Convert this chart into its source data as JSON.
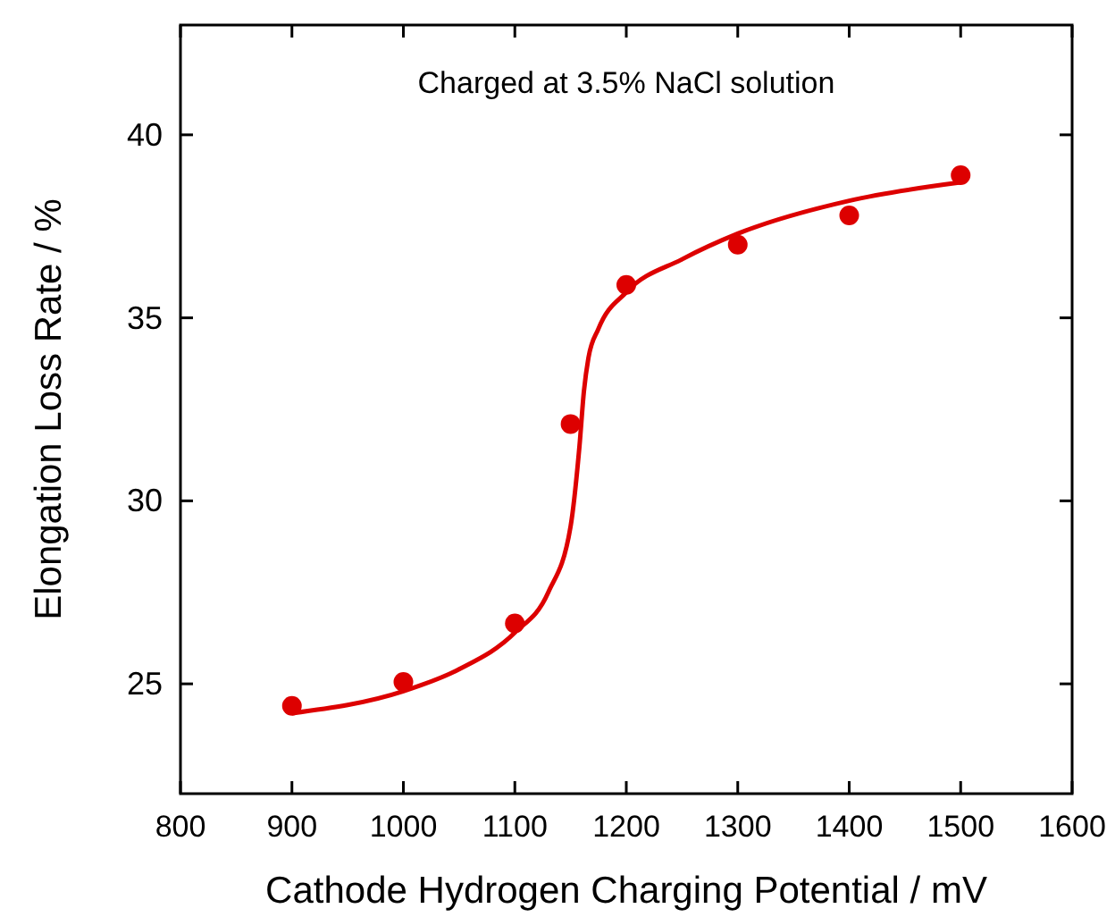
{
  "chart_data": {
    "type": "scatter",
    "xlabel": "Cathode Hydrogen Charging Potential / mV",
    "ylabel": "Elongation Loss Rate / %",
    "annotations": [
      "Charged at 3.5% NaCl solution"
    ],
    "xlim": [
      800,
      1600
    ],
    "xticks": [
      800,
      900,
      1000,
      1100,
      1200,
      1300,
      1400,
      1500,
      1600
    ],
    "ylim": [
      22,
      43
    ],
    "yticks": [
      25,
      30,
      35,
      40
    ],
    "grid": false,
    "series": [
      {
        "marker": "circle",
        "color": "#dd0000",
        "x": [
          900,
          1000,
          1100,
          1150,
          1200,
          1300,
          1400,
          1500
        ],
        "values": [
          24.4,
          25.05,
          26.65,
          32.1,
          35.9,
          37.0,
          37.8,
          38.9
        ]
      },
      {
        "type": "line",
        "color": "#dd0000",
        "line_style": "solid",
        "x": [
          900,
          1000,
          1050,
          1100,
          1130,
          1150,
          1158,
          1162,
          1166,
          1175,
          1200,
          1250,
          1300,
          1400,
          1500
        ],
        "values": [
          24.2,
          24.8,
          25.4,
          26.4,
          27.5,
          29.3,
          31.5,
          33.0,
          33.9,
          34.7,
          35.7,
          36.6,
          37.3,
          38.2,
          38.7
        ]
      }
    ]
  }
}
